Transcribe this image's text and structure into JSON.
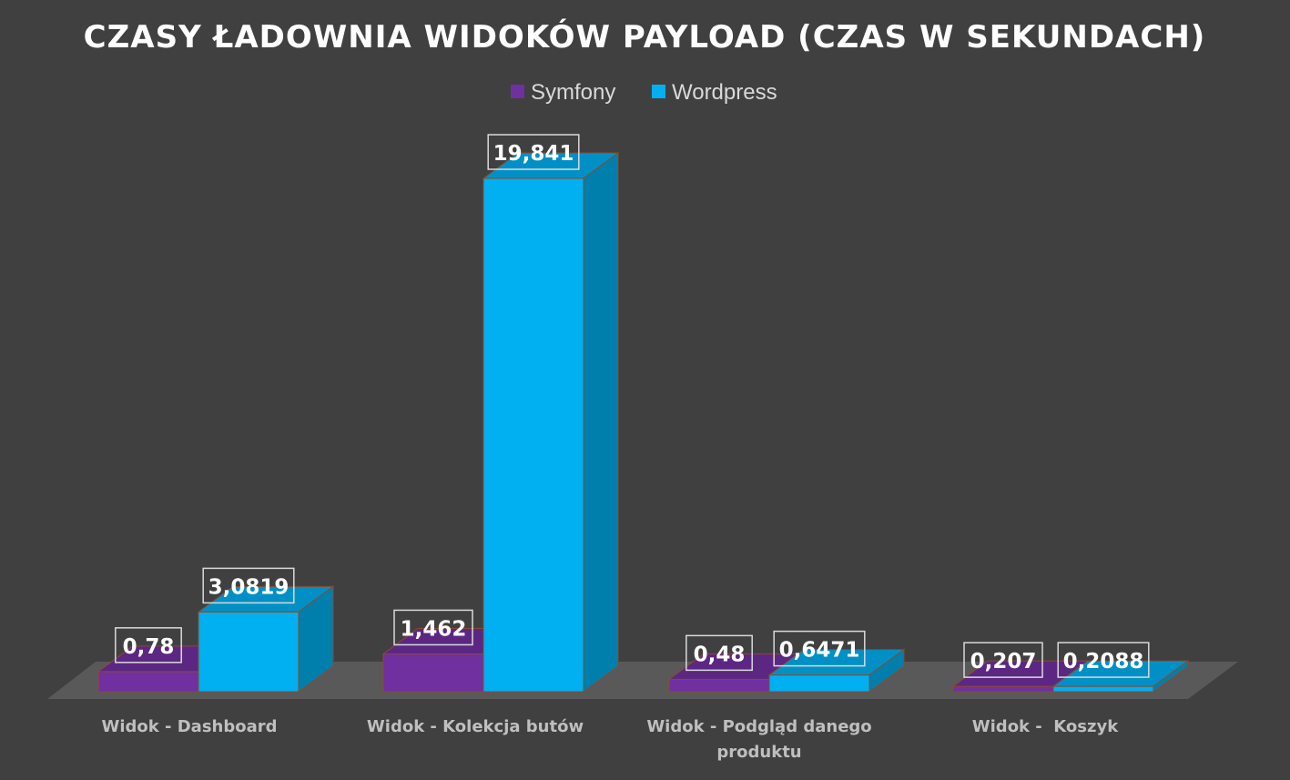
{
  "chart_data": {
    "type": "bar",
    "style": "3d-clustered-column",
    "title": "CZASY ŁADOWNIA WIDOKÓW PAYLOAD (CZAS W SEKUNDACH)",
    "categories": [
      [
        "Widok - Dashboard"
      ],
      [
        "Widok - Kolekcja butów"
      ],
      [
        "Widok - Podgląd danego",
        "produktu"
      ],
      [
        "Widok -  Koszyk"
      ]
    ],
    "series": [
      {
        "name": "Symfony",
        "color": "#7030A0",
        "values": [
          0.78,
          1.462,
          0.48,
          0.207
        ],
        "labels": [
          "0,78",
          "1,462",
          "0,48",
          "0,207"
        ]
      },
      {
        "name": "Wordpress",
        "color": "#00B0F0",
        "values": [
          3.0819,
          19.841,
          0.6471,
          0.2088
        ],
        "labels": [
          "3,0819",
          "19,841",
          "0,6471",
          "0,2088"
        ]
      }
    ],
    "legend_position": "top",
    "grid": false,
    "background": "#404040"
  }
}
